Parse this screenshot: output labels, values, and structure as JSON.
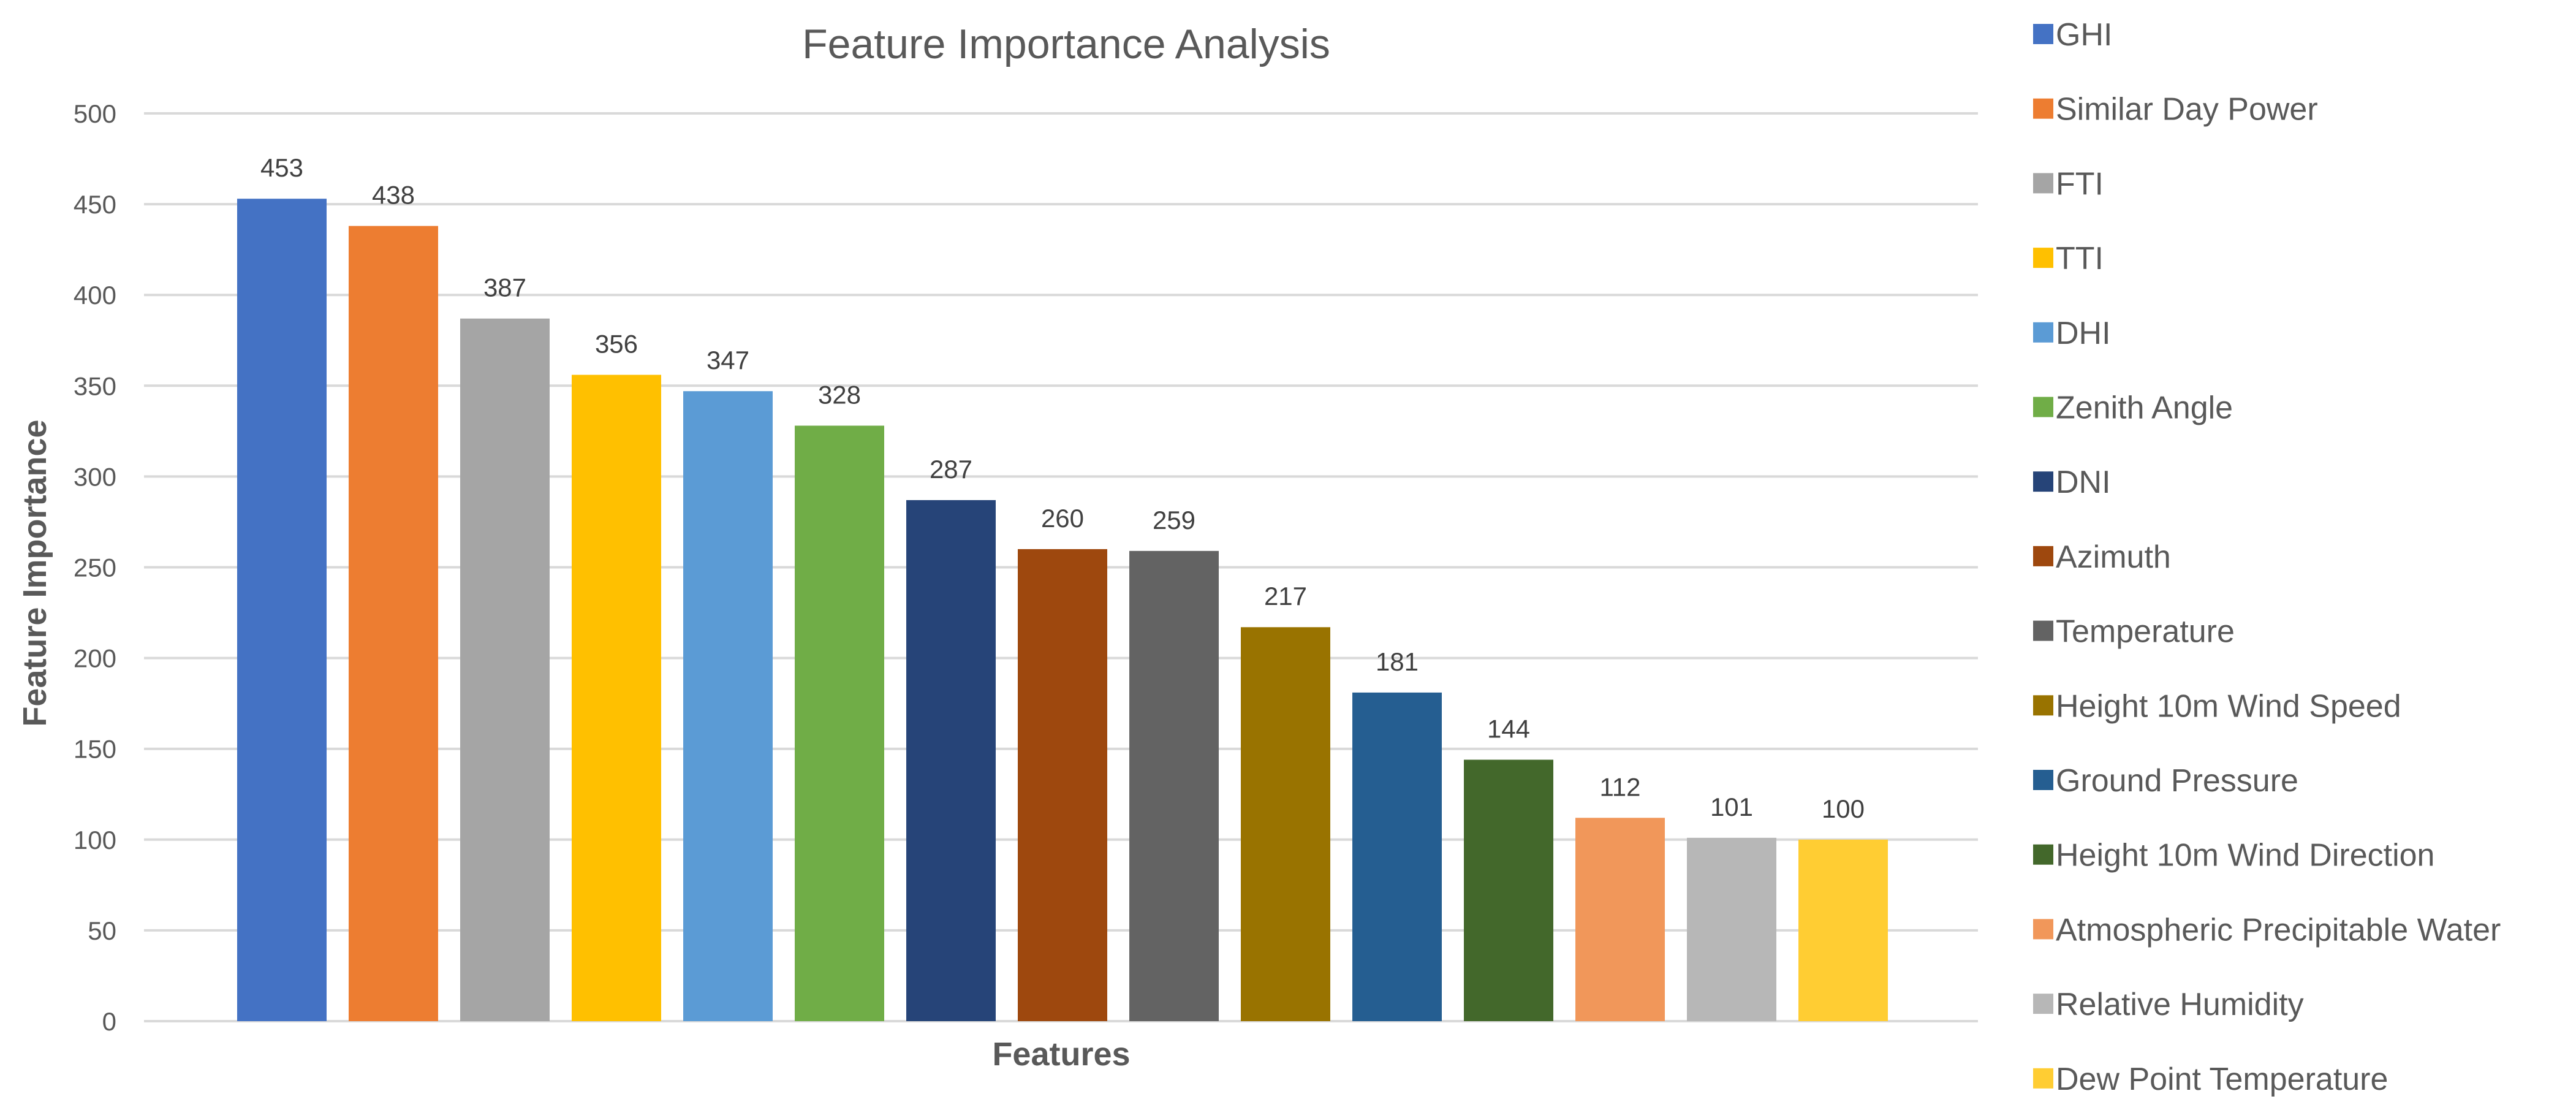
{
  "chart_data": {
    "type": "bar",
    "title": "Feature Importance Analysis",
    "xlabel": "Features",
    "ylabel": "Feature Importance",
    "ylim": [
      0,
      500
    ],
    "yticks": [
      0,
      50,
      100,
      150,
      200,
      250,
      300,
      350,
      400,
      450,
      500
    ],
    "grid": true,
    "legend_position": "right",
    "categories": [
      "GHI",
      "Similar Day Power",
      "FTI",
      "TTI",
      "DHI",
      "Zenith Angle",
      "DNI",
      "Azimuth",
      "Temperature",
      "Height 10m Wind Speed",
      "Ground Pressure",
      "Height 10m Wind Direction",
      "Atmospheric Precipitable Water",
      "Relative Humidity",
      "Dew Point Temperature"
    ],
    "values": [
      453,
      438,
      387,
      356,
      347,
      328,
      287,
      260,
      259,
      217,
      181,
      144,
      112,
      101,
      100
    ],
    "colors": [
      "#4472C4",
      "#ED7D31",
      "#A5A5A5",
      "#FFC000",
      "#5B9BD5",
      "#70AD47",
      "#264478",
      "#9E480E",
      "#636363",
      "#997300",
      "#255E91",
      "#43682B",
      "#F1975A",
      "#B7B7B7",
      "#FFCD33"
    ]
  }
}
